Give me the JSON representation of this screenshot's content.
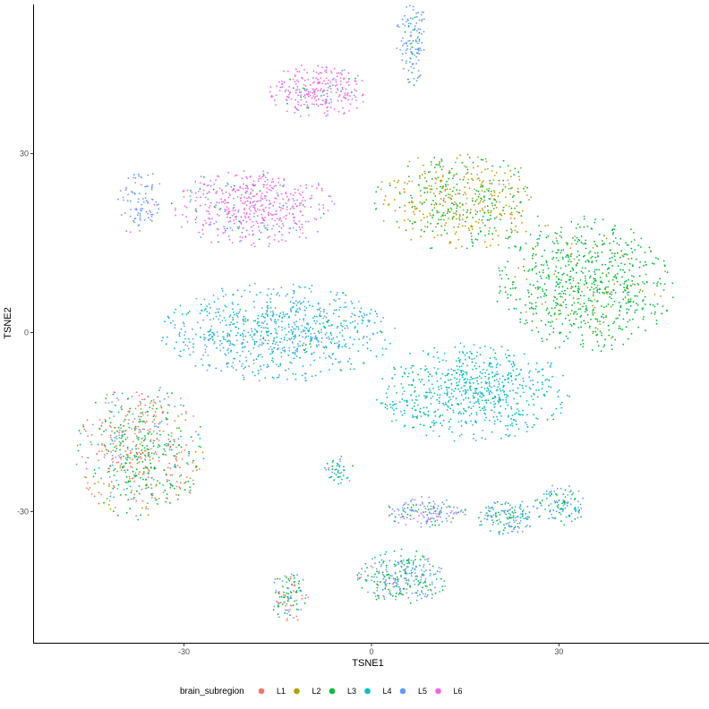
{
  "chart_data": {
    "type": "scatter",
    "xlabel": "TSNE1",
    "ylabel": "TSNE2",
    "xlim": [
      -54,
      54
    ],
    "ylim": [
      -52,
      55
    ],
    "xticks": [
      -30,
      0,
      30
    ],
    "yticks": [
      -30,
      0,
      30
    ],
    "grid": false,
    "legend": {
      "title": "brain_subregion",
      "placement": "bottom",
      "entries": [
        {
          "name": "L1",
          "color": "#F8766D"
        },
        {
          "name": "L2",
          "color": "#B79F00"
        },
        {
          "name": "L3",
          "color": "#00BA38"
        },
        {
          "name": "L4",
          "color": "#00BFC4"
        },
        {
          "name": "L5",
          "color": "#619CFF"
        },
        {
          "name": "L6",
          "color": "#F564E3"
        }
      ]
    },
    "clusters": [
      {
        "label": "L6",
        "center": [
          -8.5,
          40.5
        ],
        "spread": [
          7.5,
          4.5
        ],
        "count": 260,
        "mix": {
          "L6": 0.85,
          "L5": 0.08,
          "L3": 0.07
        }
      },
      {
        "label": "L5",
        "center": [
          6.5,
          48.5
        ],
        "spread": [
          2.5,
          7
        ],
        "count": 120,
        "mix": {
          "L5": 0.92,
          "L3": 0.08
        }
      },
      {
        "label": "L6",
        "center": [
          -19,
          21
        ],
        "spread": [
          12.5,
          6.5
        ],
        "count": 500,
        "mix": {
          "L6": 0.78,
          "L5": 0.15,
          "L3": 0.07
        }
      },
      {
        "label": "L5",
        "center": [
          -37,
          22
        ],
        "spread": [
          3.5,
          6
        ],
        "count": 90,
        "mix": {
          "L5": 0.85,
          "L6": 0.15
        }
      },
      {
        "label": "L2",
        "center": [
          14,
          22
        ],
        "spread": [
          13,
          8
        ],
        "count": 520,
        "mix": {
          "L2": 0.62,
          "L3": 0.35,
          "L1": 0.03
        }
      },
      {
        "label": "L3",
        "center": [
          34,
          8
        ],
        "spread": [
          14,
          11
        ],
        "count": 750,
        "mix": {
          "L3": 0.88,
          "L2": 0.1,
          "L4": 0.02
        }
      },
      {
        "label": "L4",
        "center": [
          -15,
          0
        ],
        "spread": [
          18,
          8
        ],
        "count": 800,
        "mix": {
          "L4": 0.6,
          "L5": 0.37,
          "L3": 0.03
        }
      },
      {
        "label": "L4",
        "center": [
          16,
          -10
        ],
        "spread": [
          15,
          8
        ],
        "count": 700,
        "mix": {
          "L4": 0.85,
          "L5": 0.08,
          "L3": 0.07
        }
      },
      {
        "label": "L1",
        "center": [
          -37,
          -20
        ],
        "spread": [
          10,
          11
        ],
        "count": 650,
        "mix": {
          "L1": 0.38,
          "L3": 0.33,
          "L2": 0.14,
          "L5": 0.08,
          "L4": 0.07
        }
      },
      {
        "label": "L4",
        "center": [
          -5,
          -23
        ],
        "spread": [
          2.5,
          2.5
        ],
        "count": 45,
        "mix": {
          "L4": 0.6,
          "L3": 0.2,
          "L6": 0.2
        }
      },
      {
        "label": "L5",
        "center": [
          -13,
          -44
        ],
        "spread": [
          3,
          4.5
        ],
        "count": 110,
        "mix": {
          "L3": 0.4,
          "L1": 0.3,
          "L5": 0.3
        }
      },
      {
        "label": "L5",
        "center": [
          5,
          -41
        ],
        "spread": [
          7,
          4.5
        ],
        "count": 280,
        "mix": {
          "L5": 0.45,
          "L3": 0.35,
          "L4": 0.15,
          "L1": 0.05
        }
      },
      {
        "label": "L5",
        "center": [
          9,
          -30
        ],
        "spread": [
          6.5,
          2.5
        ],
        "count": 150,
        "mix": {
          "L5": 0.6,
          "L6": 0.2,
          "L3": 0.2
        }
      },
      {
        "label": "L5",
        "center": [
          22,
          -31
        ],
        "spread": [
          5,
          3
        ],
        "count": 140,
        "mix": {
          "L5": 0.5,
          "L4": 0.25,
          "L3": 0.25
        }
      },
      {
        "label": "L3",
        "center": [
          30,
          -29
        ],
        "spread": [
          4,
          3.5
        ],
        "count": 110,
        "mix": {
          "L3": 0.4,
          "L4": 0.3,
          "L5": 0.3
        }
      }
    ]
  }
}
